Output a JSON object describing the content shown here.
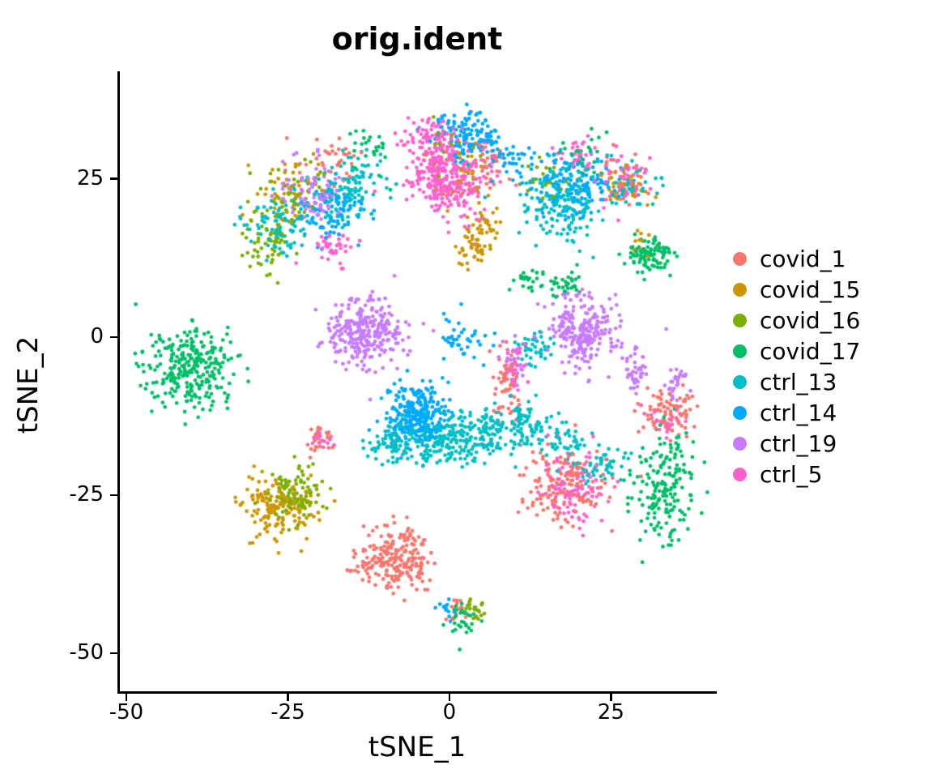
{
  "chart_data": {
    "type": "scatter",
    "title": "orig.ident",
    "xlabel": "tSNE_1",
    "ylabel": "tSNE_2",
    "xlim": [
      -51,
      41
    ],
    "ylim": [
      -56,
      42
    ],
    "x_ticks": [
      -50,
      -25,
      0,
      25
    ],
    "y_ticks": [
      25,
      0,
      -25,
      -50
    ],
    "grid": false,
    "legend_position": "right",
    "point_radius_px": 2.4,
    "cluster_format": [
      "center_x",
      "center_y",
      "sd_x",
      "sd_y",
      "n_points"
    ],
    "series": [
      {
        "name": "covid_1",
        "color": "#F8766D",
        "clusters": [
          [
            -8.5,
            -35,
            3,
            2.5,
            220
          ],
          [
            18,
            -23,
            3,
            3,
            150
          ],
          [
            9,
            -8,
            1.2,
            3,
            60
          ],
          [
            33,
            -12,
            2,
            2,
            60
          ],
          [
            6,
            28,
            2,
            2,
            40
          ],
          [
            -18,
            28,
            2,
            2,
            35
          ],
          [
            27,
            25,
            2,
            2,
            30
          ],
          [
            1,
            -43,
            1,
            1,
            15
          ],
          [
            36,
            -11,
            1.5,
            2,
            25
          ],
          [
            -20,
            -16,
            1.2,
            1,
            25
          ]
        ]
      },
      {
        "name": "covid_15",
        "color": "#CD9600",
        "clusters": [
          [
            -27,
            -27,
            2.5,
            2.5,
            150
          ],
          [
            4,
            14,
            1.5,
            1.5,
            40
          ],
          [
            -25,
            24,
            2.5,
            2.5,
            40
          ],
          [
            27,
            23,
            2,
            2,
            35
          ],
          [
            2,
            25,
            2,
            3,
            30
          ],
          [
            30,
            15,
            1,
            1,
            10
          ],
          [
            6,
            18,
            1.5,
            1.5,
            30
          ]
        ]
      },
      {
        "name": "covid_16",
        "color": "#7CAE00",
        "clusters": [
          [
            -24,
            -25,
            2,
            2,
            100
          ],
          [
            -28,
            15,
            2,
            2.5,
            60
          ],
          [
            -24,
            22,
            2.5,
            2.5,
            50
          ],
          [
            4,
            -43,
            0.8,
            0.8,
            20
          ],
          [
            0,
            30,
            2,
            2,
            20
          ],
          [
            15,
            25,
            2,
            2,
            20
          ]
        ]
      },
      {
        "name": "covid_17",
        "color": "#00BE67",
        "clusters": [
          [
            -40,
            -5,
            3.5,
            3,
            280
          ],
          [
            33,
            -24,
            2.5,
            4,
            180
          ],
          [
            31,
            13,
            1.8,
            1.5,
            90
          ],
          [
            18,
            8,
            1.5,
            1,
            30
          ],
          [
            13,
            9,
            1.5,
            1,
            25
          ],
          [
            2,
            -45,
            1,
            1.5,
            30
          ],
          [
            -12,
            30,
            2,
            2,
            25
          ],
          [
            20,
            28,
            2,
            2,
            25
          ]
        ]
      },
      {
        "name": "ctrl_13",
        "color": "#00BFC4",
        "clusters": [
          [
            -2,
            -16,
            3,
            2,
            180
          ],
          [
            5,
            -15,
            3,
            2,
            120
          ],
          [
            12,
            -14,
            2,
            2,
            80
          ],
          [
            -9,
            -17,
            2,
            1.5,
            60
          ],
          [
            -27,
            17,
            2.5,
            2.5,
            80
          ],
          [
            -17,
            22,
            2.5,
            2.5,
            80
          ],
          [
            17,
            21,
            3,
            3,
            150
          ],
          [
            -14,
            25,
            2,
            2,
            50
          ],
          [
            13,
            -2,
            1.5,
            1.5,
            40
          ],
          [
            28,
            24,
            2,
            2,
            40
          ],
          [
            18,
            -17,
            1.5,
            1.5,
            40
          ],
          [
            24,
            -20,
            2,
            1.5,
            50
          ]
        ]
      },
      {
        "name": "ctrl_14",
        "color": "#00A9FF",
        "clusters": [
          [
            -5,
            -12,
            2.5,
            2.5,
            250
          ],
          [
            19,
            24,
            3,
            2.5,
            150
          ],
          [
            3,
            32,
            2.5,
            2,
            120
          ],
          [
            -18,
            20,
            2.5,
            2.5,
            80
          ],
          [
            9,
            28,
            2,
            2,
            40
          ],
          [
            2,
            0,
            2,
            2,
            40
          ],
          [
            0,
            -43,
            0.8,
            0.8,
            12
          ]
        ]
      },
      {
        "name": "ctrl_19",
        "color": "#C77CFF",
        "clusters": [
          [
            -13,
            1,
            3,
            2.8,
            280
          ],
          [
            21,
            1,
            2.8,
            2.8,
            250
          ],
          [
            -21,
            23,
            2.5,
            2.5,
            90
          ],
          [
            29,
            -5,
            1,
            2,
            40
          ],
          [
            10,
            -4,
            1,
            1.5,
            25
          ],
          [
            35,
            -7,
            1,
            1.5,
            25
          ]
        ]
      },
      {
        "name": "ctrl_5",
        "color": "#FF61CC",
        "clusters": [
          [
            0,
            25,
            3,
            3,
            280
          ],
          [
            -3,
            32,
            2,
            1.5,
            50
          ],
          [
            -2,
            29,
            2,
            2,
            60
          ],
          [
            19,
            -24,
            2.5,
            3,
            100
          ],
          [
            -18,
            14,
            2,
            1.5,
            40
          ],
          [
            27,
            25,
            2,
            2,
            50
          ],
          [
            10,
            -4,
            1,
            2,
            30
          ],
          [
            -20,
            -16,
            1,
            1,
            15
          ],
          [
            34,
            -13,
            1.5,
            1.5,
            25
          ],
          [
            20,
            29,
            2,
            1.5,
            30
          ]
        ]
      }
    ]
  }
}
